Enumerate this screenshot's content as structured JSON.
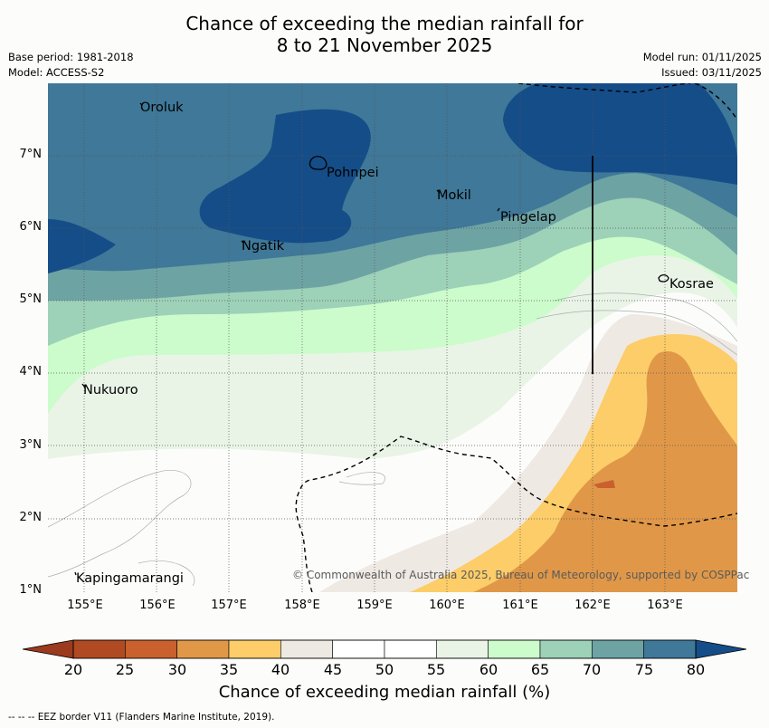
{
  "header": {
    "title_line1": "Chance of exceeding the median rainfall for",
    "title_line2": "8 to 21 November 2025",
    "base_period": "Base period: 1981-2018",
    "model": "Model: ACCESS-S2",
    "model_run": "Model run: 01/11/2025",
    "issued": "Issued: 03/11/2025"
  },
  "map": {
    "x_ticks": [
      "155°E",
      "156°E",
      "157°E",
      "158°E",
      "159°E",
      "160°E",
      "161°E",
      "162°E",
      "163°E"
    ],
    "y_ticks": [
      "7°N",
      "6°N",
      "5°N",
      "4°N",
      "3°N",
      "2°N",
      "1°N"
    ],
    "places": [
      "Oroluk",
      "Pohnpei",
      "Mokil",
      "Pingelap",
      "Ngatik",
      "Kosrae",
      "Nukuoro",
      "Kapingamarangi"
    ],
    "copyright": "© Commonwealth of Australia 2025, Bureau of Meteorology, supported by COSPPac"
  },
  "colorbar": {
    "ticks": [
      "20",
      "25",
      "30",
      "35",
      "40",
      "45",
      "50",
      "55",
      "60",
      "65",
      "70",
      "75",
      "80"
    ],
    "colors": [
      "#b04a22",
      "#c9602e",
      "#e09848",
      "#fccd68",
      "#efe9e4",
      "#ffffff",
      "#ffffff",
      "#e9f4e7",
      "#ccfccc",
      "#9dd1b8",
      "#6ea3a4",
      "#3f7898",
      "#154d88"
    ],
    "label": "Chance of exceeding median rainfall (%)"
  },
  "footnote": "-- -- -- EEZ border V11 (Flanders Marine Institute, 2019)."
}
